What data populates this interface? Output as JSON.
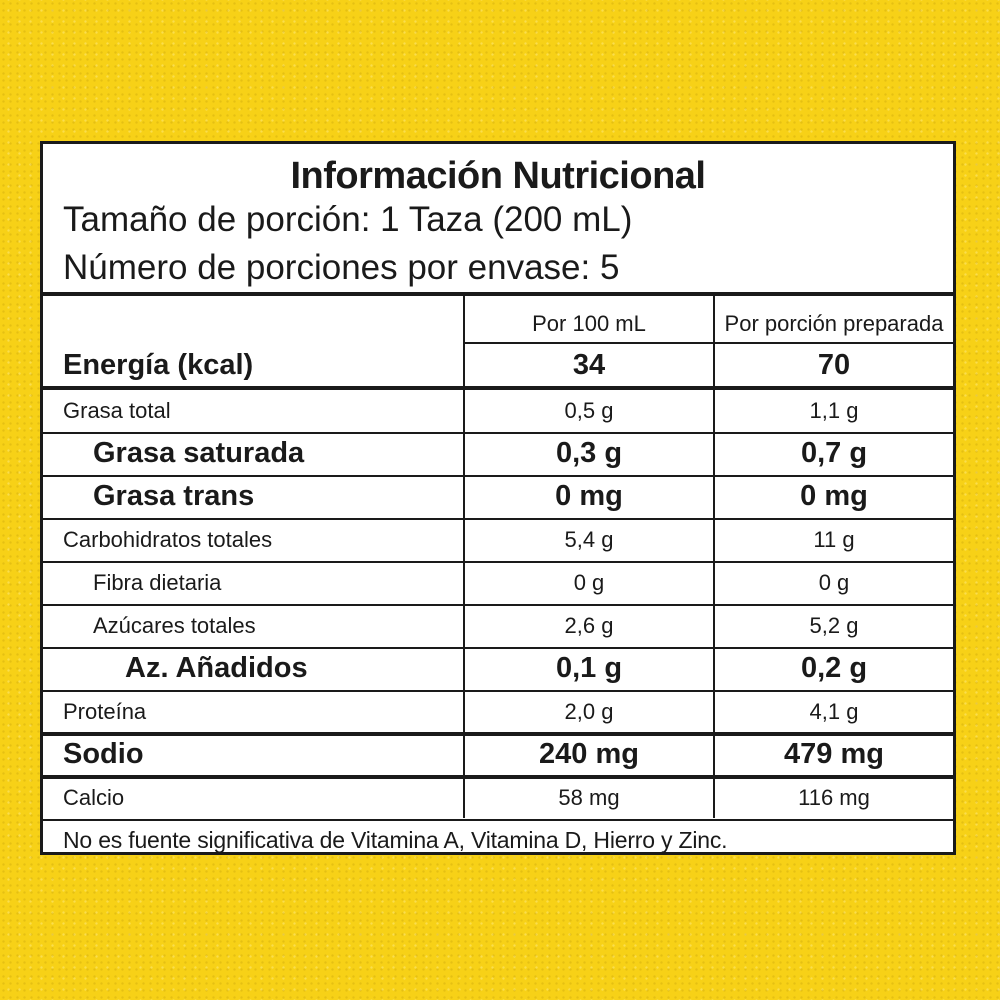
{
  "label": {
    "title": "Información Nutricional",
    "serving_size": "Tamaño de porción: 1 Taza (200 mL)",
    "servings_per_container": "Número de porciones por envase: 5",
    "columns": [
      "Por 100 mL",
      "Por porción preparada"
    ],
    "energy": {
      "name": "Energía (kcal)",
      "per_100": "34",
      "per_serving": "70"
    },
    "rows": [
      {
        "name": "Grasa total",
        "per_100": "0,5 g",
        "per_serving": "1,1 g",
        "bold": false,
        "indent": 0
      },
      {
        "name": "Grasa saturada",
        "per_100": "0,3 g",
        "per_serving": "0,7 g",
        "bold": true,
        "indent": 1
      },
      {
        "name": "Grasa trans",
        "per_100": "0 mg",
        "per_serving": "0 mg",
        "bold": true,
        "indent": 1
      },
      {
        "name": "Carbohidratos totales",
        "per_100": "5,4 g",
        "per_serving": "11 g",
        "bold": false,
        "indent": 0
      },
      {
        "name": "Fibra dietaria",
        "per_100": "0 g",
        "per_serving": "0 g",
        "bold": false,
        "indent": 1
      },
      {
        "name": "Azúcares totales",
        "per_100": "2,6 g",
        "per_serving": "5,2 g",
        "bold": false,
        "indent": 1
      },
      {
        "name": "Az. Añadidos",
        "per_100": "0,1 g",
        "per_serving": "0,2 g",
        "bold": true,
        "indent": 2
      },
      {
        "name": "Proteína",
        "per_100": "2,0 g",
        "per_serving": "4,1 g",
        "bold": false,
        "indent": 0
      },
      {
        "name": "Sodio",
        "per_100": "240 mg",
        "per_serving": "479 mg",
        "bold": true,
        "indent": 0
      },
      {
        "name": "Calcio",
        "per_100": "58 mg",
        "per_serving": "116 mg",
        "bold": false,
        "indent": 0
      }
    ],
    "footnote": "No es fuente significativa de Vitamina A, Vitamina D, Hierro y Zinc."
  }
}
